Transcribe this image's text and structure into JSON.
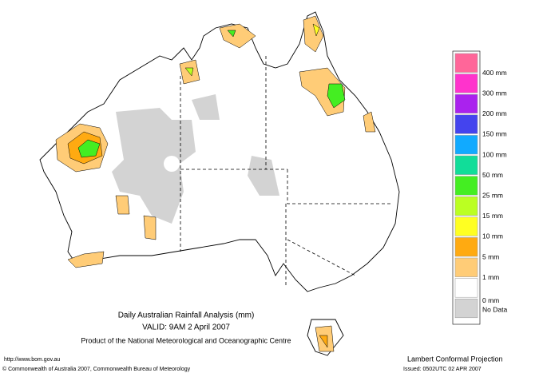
{
  "title": {
    "line1": "Daily Australian Rainfall Analysis (mm)",
    "line2": "VALID: 9AM  2 April 2007",
    "line3": "Product of the National Meteorological and Oceanographic Centre"
  },
  "legend": {
    "colors": [
      "#ff6699",
      "#ff33cc",
      "#aa22ee",
      "#4444ee",
      "#11aaff",
      "#11dd99",
      "#44ee22",
      "#bbff22",
      "#ffff22",
      "#ffaa11",
      "#ffcc77",
      "#ffffff",
      "#d3d3d3"
    ],
    "labels": [
      "400 mm",
      "300 mm",
      "200 mm",
      "150 mm",
      "100 mm",
      "50 mm",
      "25 mm",
      "15 mm",
      "10 mm",
      "5 mm",
      "1 mm",
      "0 mm",
      "No Data"
    ]
  },
  "footer": {
    "url": "http://www.bom.gov.au",
    "copyright": "© Commonwealth of Australia 2007, Commonwealth Bureau of Meteorology",
    "projection": "Lambert Conformal Projection",
    "issued": "Issued: 0502UTC 02 APR 2007"
  }
}
